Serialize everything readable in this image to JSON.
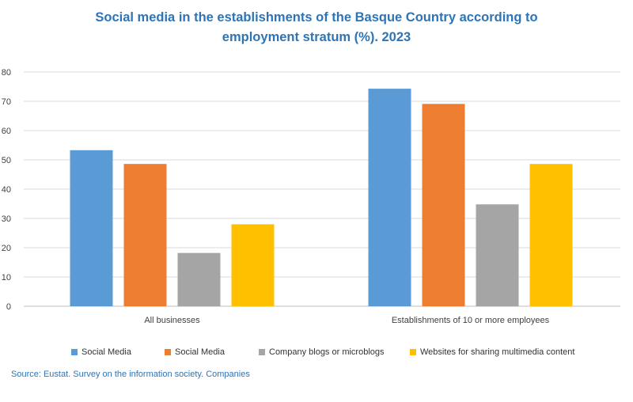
{
  "title_line1": "Social media in the establishments of the Basque Country according to",
  "title_line2": "employment stratum (%). 2023",
  "source": "Source: Eustat. Survey on the information society. Companies",
  "chart_data": {
    "type": "bar",
    "title": "Social media in the establishments of the Basque Country according to employment stratum (%). 2023",
    "categories": [
      "All businesses",
      "Establishments of 10 or more employees"
    ],
    "series": [
      {
        "name": "Social Media",
        "color": "#5b9bd5",
        "values": [
          53.3,
          74.3
        ]
      },
      {
        "name": "Social Media",
        "color": "#ed7d31",
        "values": [
          48.6,
          69.1
        ]
      },
      {
        "name": "Company blogs or microblogs",
        "color": "#a5a5a5",
        "values": [
          18.2,
          34.8
        ]
      },
      {
        "name": "Websites for sharing multimedia content",
        "color": "#ffc000",
        "values": [
          28.0,
          48.6
        ]
      }
    ],
    "ylim": [
      0,
      80
    ],
    "yticks": [
      0,
      10,
      20,
      30,
      40,
      50,
      60,
      70,
      80
    ],
    "grid": true,
    "legend_position": "bottom"
  }
}
